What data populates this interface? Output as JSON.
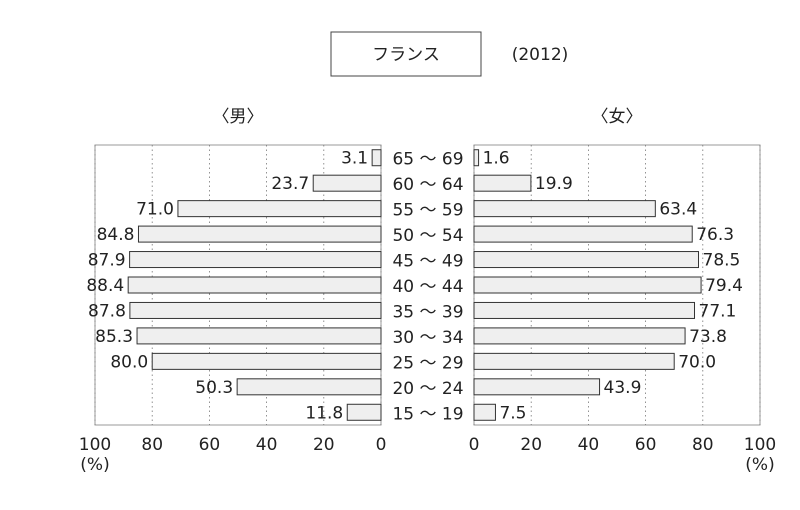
{
  "chart_data": {
    "type": "bar",
    "title": "フランス",
    "subtitle": "(2012)",
    "x_label": "(%)",
    "categories": [
      "65 〜 69",
      "60 〜 64",
      "55 〜 59",
      "50 〜 54",
      "45 〜 49",
      "40 〜 44",
      "35 〜 39",
      "30 〜 34",
      "25 〜 29",
      "20 〜 24",
      "15 〜 19"
    ],
    "grid": true,
    "series": [
      {
        "name": "〈男〉",
        "color": "#efefef",
        "values": [
          3.1,
          23.7,
          71.0,
          84.8,
          87.9,
          88.4,
          87.8,
          85.3,
          80.0,
          50.3,
          11.8
        ],
        "value_labels": [
          "3.1",
          "23.7",
          "71.0",
          "84.8",
          "87.9",
          "88.4",
          "87.8",
          "85.3",
          "80.0",
          "50.3",
          "11.8"
        ],
        "xlim": [
          100,
          0
        ],
        "xticks": [
          100,
          80,
          60,
          40,
          20,
          0
        ]
      },
      {
        "name": "〈女〉",
        "color": "#efefef",
        "values": [
          1.6,
          19.9,
          63.4,
          76.3,
          78.5,
          79.4,
          77.1,
          73.8,
          70.0,
          43.9,
          7.5
        ],
        "value_labels": [
          "1.6",
          "19.9",
          "63.4",
          "76.3",
          "78.5",
          "79.4",
          "77.1",
          "73.8",
          "70.0",
          "43.9",
          "7.5"
        ],
        "xlim": [
          0,
          100
        ],
        "xticks": [
          0,
          20,
          40,
          60,
          80,
          100
        ]
      }
    ]
  }
}
